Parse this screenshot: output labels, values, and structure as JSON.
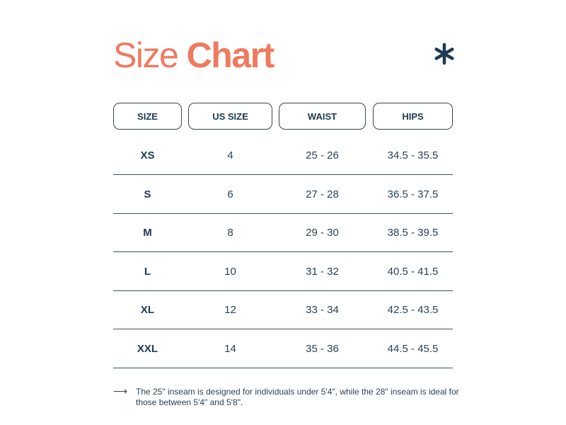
{
  "title": {
    "light": "Size",
    "bold": "Chart"
  },
  "colors": {
    "accent": "#ef7a5f",
    "text": "#1d3a52"
  },
  "decoration_icon": "asterisk-icon",
  "headers": [
    "SIZE",
    "US SIZE",
    "WAIST",
    "HIPS"
  ],
  "rows": [
    [
      "XS",
      "4",
      "25 - 26",
      "34.5 - 35.5"
    ],
    [
      "S",
      "6",
      "27 - 28",
      "36.5 - 37.5"
    ],
    [
      "M",
      "8",
      "29 - 30",
      "38.5 - 39.5"
    ],
    [
      "L",
      "10",
      "31 - 32",
      "40.5 - 41.5"
    ],
    [
      "XL",
      "12",
      "33 - 34",
      "42.5 - 43.5"
    ],
    [
      "XXL",
      "14",
      "35 - 36",
      "44.5 - 45.5"
    ]
  ],
  "note": {
    "icon": "arrow-right-icon",
    "text": "The 25\" inseam is designed for individuals under 5'4\", while the 28\" inseam is ideal for those between 5'4\" and 5'8\"."
  }
}
